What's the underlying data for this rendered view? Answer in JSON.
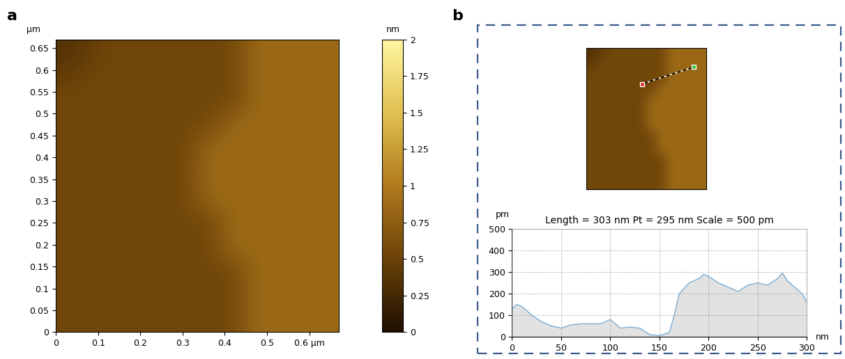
{
  "panel_labels": [
    "a",
    "b"
  ],
  "chart_data": [
    {
      "type": "heatmap",
      "xlim": [
        0,
        0.67
      ],
      "ylim": [
        0,
        0.67
      ],
      "xticks": [
        0,
        0.1,
        0.2,
        0.3,
        0.4,
        0.5,
        {
          "value": 0.6,
          "label": "0.6 µm"
        }
      ],
      "yticks": [
        0,
        0.05,
        0.1,
        0.15,
        0.2,
        0.25,
        0.3,
        0.35,
        0.4,
        0.45,
        0.5,
        0.55,
        0.6,
        0.65
      ],
      "y_label": "µm",
      "colorbar_label": "nm",
      "clim": [
        0,
        2
      ],
      "cticks": [
        0,
        0.25,
        0.5,
        0.75,
        1,
        1.25,
        1.5,
        1.75,
        2
      ],
      "cells": [
        [
          0.35,
          0.45,
          0.55,
          0.55,
          0.55,
          0.55,
          0.55,
          0.55,
          0.85,
          0.85,
          0.85,
          0.85
        ],
        [
          0.45,
          0.55,
          0.55,
          0.55,
          0.55,
          0.55,
          0.55,
          0.55,
          0.85,
          0.85,
          0.85,
          0.85
        ],
        [
          0.55,
          0.55,
          0.55,
          0.55,
          0.55,
          0.55,
          0.55,
          0.55,
          0.85,
          0.85,
          0.85,
          0.85
        ],
        [
          0.55,
          0.55,
          0.55,
          0.55,
          0.55,
          0.55,
          0.55,
          0.85,
          0.85,
          0.85,
          0.85,
          0.85
        ],
        [
          0.55,
          0.55,
          0.55,
          0.55,
          0.55,
          0.55,
          0.85,
          0.85,
          0.85,
          0.85,
          0.85,
          0.85
        ],
        [
          0.55,
          0.55,
          0.55,
          0.55,
          0.55,
          0.55,
          0.85,
          0.85,
          0.85,
          0.85,
          0.85,
          0.85
        ],
        [
          0.55,
          0.55,
          0.55,
          0.55,
          0.55,
          0.55,
          0.85,
          0.85,
          0.85,
          0.85,
          0.85,
          0.85
        ],
        [
          0.55,
          0.55,
          0.55,
          0.55,
          0.55,
          0.55,
          0.55,
          0.85,
          0.85,
          0.85,
          0.85,
          0.85
        ],
        [
          0.55,
          0.55,
          0.55,
          0.55,
          0.55,
          0.55,
          0.55,
          0.85,
          0.85,
          0.85,
          0.85,
          0.85
        ],
        [
          0.55,
          0.55,
          0.55,
          0.55,
          0.55,
          0.55,
          0.55,
          0.55,
          0.85,
          0.85,
          0.85,
          0.85
        ],
        [
          0.55,
          0.55,
          0.55,
          0.55,
          0.55,
          0.55,
          0.55,
          0.55,
          0.85,
          0.85,
          0.85,
          0.85
        ],
        [
          0.55,
          0.55,
          0.55,
          0.55,
          0.55,
          0.55,
          0.55,
          0.55,
          0.85,
          0.85,
          0.85,
          0.85
        ]
      ]
    },
    {
      "type": "heatmap",
      "tick_labels": false,
      "xlim": [
        0,
        0.67
      ],
      "ylim": [
        0,
        0.67
      ],
      "clim": [
        0,
        2
      ],
      "cells": [
        [
          0.35,
          0.45,
          0.55,
          0.55,
          0.55,
          0.55,
          0.55,
          0.55,
          0.85,
          0.85,
          0.85,
          0.85
        ],
        [
          0.45,
          0.55,
          0.55,
          0.55,
          0.55,
          0.55,
          0.55,
          0.55,
          0.85,
          0.85,
          0.85,
          0.85
        ],
        [
          0.55,
          0.55,
          0.55,
          0.55,
          0.55,
          0.55,
          0.55,
          0.55,
          0.85,
          0.85,
          0.85,
          0.85
        ],
        [
          0.55,
          0.55,
          0.55,
          0.55,
          0.55,
          0.55,
          0.55,
          0.85,
          0.85,
          0.85,
          0.85,
          0.85
        ],
        [
          0.55,
          0.55,
          0.55,
          0.55,
          0.55,
          0.55,
          0.85,
          0.85,
          0.85,
          0.85,
          0.85,
          0.85
        ],
        [
          0.55,
          0.55,
          0.55,
          0.55,
          0.55,
          0.55,
          0.85,
          0.85,
          0.85,
          0.85,
          0.85,
          0.85
        ],
        [
          0.55,
          0.55,
          0.55,
          0.55,
          0.55,
          0.55,
          0.85,
          0.85,
          0.85,
          0.85,
          0.85,
          0.85
        ],
        [
          0.55,
          0.55,
          0.55,
          0.55,
          0.55,
          0.55,
          0.55,
          0.85,
          0.85,
          0.85,
          0.85,
          0.85
        ],
        [
          0.55,
          0.55,
          0.55,
          0.55,
          0.55,
          0.55,
          0.55,
          0.85,
          0.85,
          0.85,
          0.85,
          0.85
        ],
        [
          0.55,
          0.55,
          0.55,
          0.55,
          0.55,
          0.55,
          0.55,
          0.55,
          0.85,
          0.85,
          0.85,
          0.85
        ],
        [
          0.55,
          0.55,
          0.55,
          0.55,
          0.55,
          0.55,
          0.55,
          0.55,
          0.85,
          0.85,
          0.85,
          0.85
        ],
        [
          0.55,
          0.55,
          0.55,
          0.55,
          0.55,
          0.55,
          0.55,
          0.55,
          0.85,
          0.85,
          0.85,
          0.85
        ]
      ],
      "profile": {
        "x": [
          0.31,
          0.6
        ],
        "y": [
          0.5,
          0.58
        ],
        "colors": [
          "#e03030",
          "#30c030"
        ]
      }
    },
    {
      "type": "line",
      "title": "Length = 303 nm Pt = 295 nm Scale = 500 pm",
      "x_label": "nm",
      "y_label": "pm",
      "color": "#7aaed6",
      "grid": true,
      "xlim": [
        0,
        300
      ],
      "ylim": [
        0,
        500
      ],
      "xticks": [
        0,
        50,
        100,
        150,
        200,
        250,
        300
      ],
      "yticks": [
        0,
        100,
        200,
        300,
        400,
        500
      ],
      "x": [
        0,
        5,
        10,
        20,
        30,
        40,
        50,
        60,
        70,
        80,
        90,
        100,
        110,
        120,
        130,
        140,
        150,
        160,
        165,
        170,
        180,
        190,
        195,
        200,
        210,
        220,
        230,
        240,
        250,
        260,
        270,
        275,
        280,
        290,
        295,
        300
      ],
      "values": [
        130,
        150,
        140,
        100,
        70,
        50,
        40,
        55,
        60,
        60,
        60,
        80,
        40,
        45,
        40,
        10,
        5,
        20,
        100,
        200,
        250,
        270,
        290,
        280,
        250,
        230,
        210,
        240,
        250,
        240,
        270,
        295,
        260,
        220,
        200,
        160
      ]
    }
  ]
}
